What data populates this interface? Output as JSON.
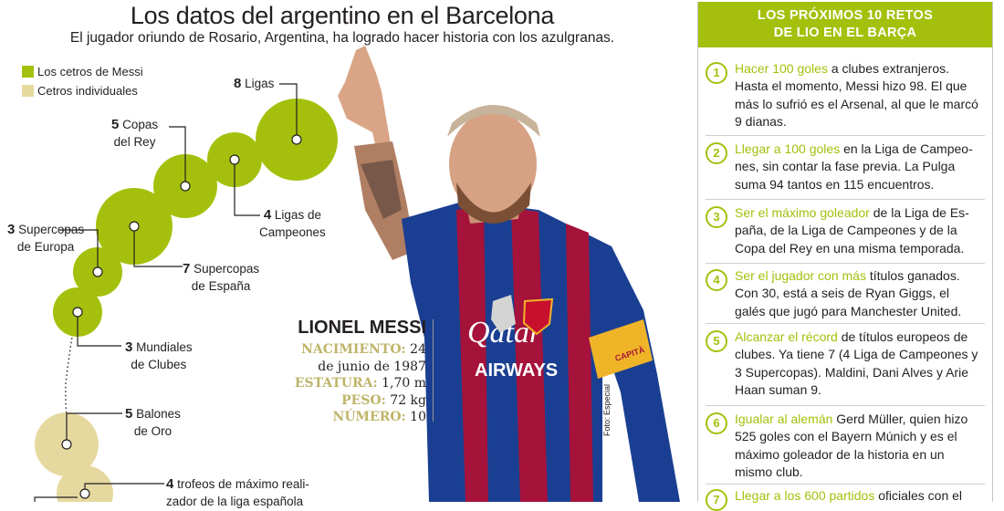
{
  "header": {
    "title": "Los datos del argentino en el Barcelona",
    "subtitle": "El jugador oriundo de Rosario, Argentina, ha logrado hacer historia con los azulgranas."
  },
  "legend": {
    "items": [
      {
        "label": "Los cetros de Messi",
        "color": "#a5c00c"
      },
      {
        "label": "Cetros individuales",
        "color": "#e6d9a0"
      }
    ]
  },
  "diagram": {
    "nodes": [
      {
        "num": "8",
        "text": "Ligas",
        "text2": ""
      },
      {
        "num": "5",
        "text": "Copas",
        "text2": "del Rey"
      },
      {
        "num": "4",
        "text": "Ligas de",
        "text2": "Campeones"
      },
      {
        "num": "3",
        "text": "Supercopas",
        "text2": "de Europa"
      },
      {
        "num": "7",
        "text": "Supercopas",
        "text2": "de España"
      },
      {
        "num": "3",
        "text": "Mundiales",
        "text2": "de Clubes"
      },
      {
        "num": "5",
        "text": "Balones",
        "text2": "de Oro"
      },
      {
        "num": "4",
        "text": "trofeos de máximo reali-",
        "text2": "zador de la liga española"
      }
    ]
  },
  "bio": {
    "name": "LIONEL MESSI",
    "birth_label": "NACIMIENTO:",
    "birth_value_1": "24",
    "birth_value_2": "de junio de 1987",
    "height_label": "ESTATURA:",
    "height_value": "1,70 m",
    "weight_label": "PESO:",
    "weight_value": "72 kg",
    "number_label": "NÚMERO:",
    "number_value": "10"
  },
  "photo": {
    "credit": "Foto: Especial",
    "sponsor_1": "Qatar",
    "sponsor_2": "AIRWAYS",
    "armband": "CAPITÀ"
  },
  "panel": {
    "title_line1": "LOS PRÓXIMOS 10 RETOS",
    "title_line2": "DE LIO EN EL BARÇA",
    "retos": [
      {
        "num": "1",
        "highlight": "Hacer 100 goles",
        "text": " a clubes extranjeros. Hasta el momento, Messi hizo 98. El que más lo sufrió es el Arsenal, al que le marcó 9 dianas."
      },
      {
        "num": "2",
        "highlight": "Llegar a 100 goles",
        "text": " en la Liga de Campeo- nes, sin contar la fase previa. La Pulga suma 94 tantos en 115 encuentros."
      },
      {
        "num": "3",
        "highlight": "Ser el máximo goleador",
        "text": " de la Liga de Es- paña, de la Liga de Campeones y de la Copa del Rey en una misma temporada."
      },
      {
        "num": "4",
        "highlight": "Ser el jugador con más",
        "text": " títulos ganados. Con 30, está a seis de Ryan Giggs, el galés que jugó para Manchester United."
      },
      {
        "num": "5",
        "highlight": "Alcanzar el récord",
        "text": " de títulos europeos de clubes. Ya tiene 7 (4 Liga de Campeones y 3 Supercopas). Maldini, Dani Alves y Arie Haan suman 9."
      },
      {
        "num": "6",
        "highlight": "Igualar al alemán",
        "text": " Gerd Müller, quien hizo 525 goles con el Bayern Múnich y es el máximo goleador de la historia en un mismo club."
      },
      {
        "num": "7",
        "highlight": "Llegar a los 600 partidos",
        "text": " oficiales con el"
      }
    ]
  }
}
